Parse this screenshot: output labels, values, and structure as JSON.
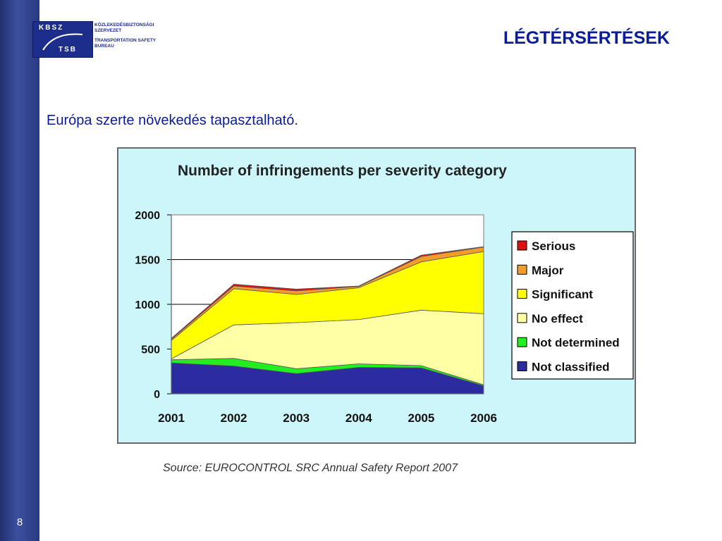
{
  "logo": {
    "box_top": "KBSZ",
    "box_bottom": "TSB",
    "line1": "KÖZLEKEDÉSBIZTONSÁGI",
    "line2": "SZERVEZET",
    "line3": "TRANSPORTATION SAFETY",
    "line4": "BUREAU"
  },
  "slide": {
    "title": "LÉGTÉRSÉRTÉSEK",
    "subtitle": "Európa szerte növekedés tapasztalható.",
    "page_number": "8",
    "source": "Source: EUROCONTROL SRC Annual Safety Report 2007"
  },
  "colors": {
    "title_blue": "#0a1c9a",
    "chart_background": "#ccf6fa",
    "sidebar": "#2a3a80"
  },
  "chart_data": {
    "type": "area",
    "stacked": true,
    "title": "Number of infringements per severity category",
    "x": [
      "2001",
      "2002",
      "2003",
      "2004",
      "2005",
      "2006"
    ],
    "ylim": [
      0,
      2000
    ],
    "yticks": [
      "0",
      "500",
      "1000",
      "1500",
      "2000"
    ],
    "grid": true,
    "legend_position": "right",
    "series": [
      {
        "name": "Not classified",
        "color": "#2c2ca0",
        "values": [
          345,
          310,
          225,
          295,
          290,
          90
        ]
      },
      {
        "name": "Not determined",
        "color": "#22ee22",
        "values": [
          35,
          85,
          55,
          40,
          25,
          10
        ]
      },
      {
        "name": "No effect",
        "color": "#ffffa6",
        "values": [
          10,
          375,
          515,
          495,
          620,
          795
        ]
      },
      {
        "name": "Significant",
        "color": "#ffff00",
        "values": [
          205,
          405,
          315,
          355,
          540,
          695
        ]
      },
      {
        "name": "Major",
        "color": "#f29d2a",
        "values": [
          15,
          30,
          40,
          15,
          60,
          50
        ]
      },
      {
        "name": "Serious",
        "color": "#e01010",
        "values": [
          10,
          20,
          20,
          5,
          15,
          5
        ]
      }
    ],
    "legend_order": [
      "Serious",
      "Major",
      "Significant",
      "No effect",
      "Not determined",
      "Not classified"
    ]
  }
}
